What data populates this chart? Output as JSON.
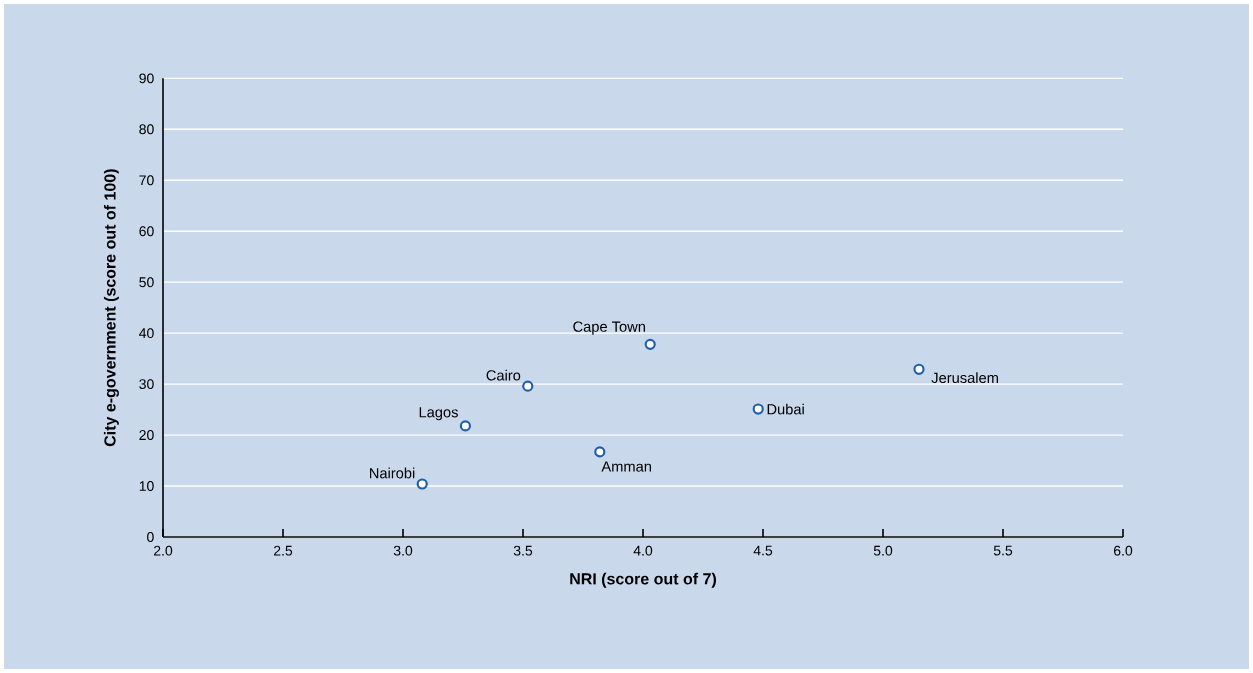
{
  "chart_data": {
    "type": "scatter",
    "xlabel": "NRI (score out of 7)",
    "ylabel": "City e-government (score out of 100)",
    "x": [
      3.08,
      3.26,
      3.52,
      4.03,
      3.82,
      4.48,
      5.15
    ],
    "values": [
      10.4,
      21.8,
      29.6,
      37.8,
      16.7,
      25.1,
      32.9
    ],
    "color": "#1f5fa8",
    "marker": "circle",
    "grid": "y",
    "xlim": [
      2,
      6
    ],
    "ylim": [
      0,
      90
    ],
    "xticks": [
      {
        "value": 2,
        "label": "2.0"
      },
      {
        "value": 2.5,
        "label": "2.5"
      },
      {
        "value": 3,
        "label": "3.0"
      },
      {
        "value": 3.5,
        "label": "3.5"
      },
      {
        "value": 4,
        "label": "4.0"
      },
      {
        "value": 4.5,
        "label": "4.5"
      },
      {
        "value": 5,
        "label": "5.0"
      },
      {
        "value": 5.5,
        "label": "5.5"
      },
      {
        "value": 6,
        "label": "6.0"
      }
    ],
    "yticks": [
      0,
      10,
      20,
      30,
      40,
      50,
      60,
      70,
      80,
      90
    ],
    "annotations": [
      {
        "text": "Nairobi",
        "x": 3.08,
        "y": 10.4
      },
      {
        "text": "Lagos",
        "x": 3.26,
        "y": 21.8
      },
      {
        "text": "Cairo",
        "x": 3.52,
        "y": 29.6
      },
      {
        "text": "Cape Town",
        "x": 4.03,
        "y": 37.8
      },
      {
        "text": "Amman",
        "x": 3.82,
        "y": 16.7
      },
      {
        "text": "Dubai",
        "x": 4.48,
        "y": 25.1
      },
      {
        "text": "Jerusalem",
        "x": 5.15,
        "y": 32.9
      }
    ]
  }
}
